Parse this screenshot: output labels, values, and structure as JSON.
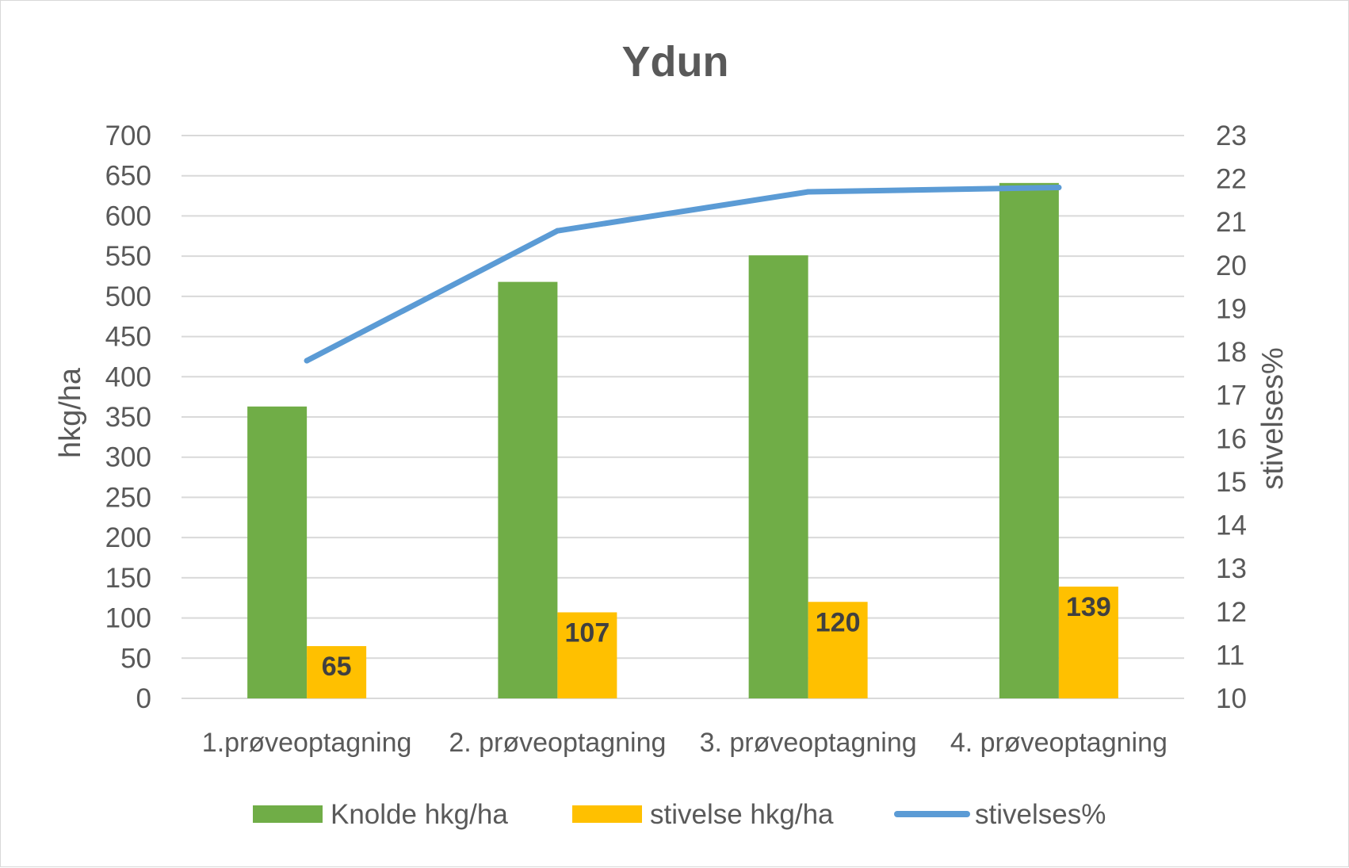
{
  "chart_data": {
    "type": "bar",
    "title": "Ydun",
    "categories": [
      "1.prøveoptagning",
      "2. prøveoptagning",
      "3. prøveoptagning",
      "4. prøveoptagning"
    ],
    "series": [
      {
        "name": "Knolde hkg/ha",
        "type": "bar",
        "axis": "left",
        "color": "#70ad47",
        "values": [
          363,
          518,
          551,
          641
        ]
      },
      {
        "name": "stivelse hkg/ha",
        "type": "bar",
        "axis": "left",
        "color": "#ffc000",
        "values": [
          65,
          107,
          120,
          139
        ],
        "data_labels": [
          "65",
          "107",
          "120",
          "139"
        ]
      },
      {
        "name": "stivelses%",
        "type": "line",
        "axis": "right",
        "color": "#5b9bd5",
        "values": [
          17.8,
          20.8,
          21.7,
          21.8
        ]
      }
    ],
    "ylabel": "hkg/ha",
    "ylim": [
      0,
      700
    ],
    "yticks": [
      "0",
      "50",
      "100",
      "150",
      "200",
      "250",
      "300",
      "350",
      "400",
      "450",
      "500",
      "550",
      "600",
      "650",
      "700"
    ],
    "y2label": "stivelses%",
    "y2lim": [
      10,
      23
    ],
    "y2ticks": [
      "10",
      "11",
      "12",
      "13",
      "14",
      "15",
      "16",
      "17",
      "18",
      "19",
      "20",
      "21",
      "22",
      "23"
    ],
    "grid": true,
    "legend": "bottom"
  }
}
